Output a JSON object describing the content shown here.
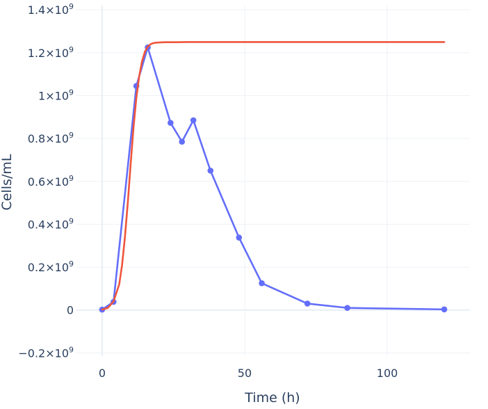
{
  "chart_data": {
    "type": "line",
    "xlabel": "Time (h)",
    "ylabel": "Cells/mL",
    "xlim": [
      -9,
      129
    ],
    "ylim": [
      -215000000,
      1420000000
    ],
    "x_ticks": [
      {
        "value": 0,
        "label": "0"
      },
      {
        "value": 50,
        "label": "50"
      },
      {
        "value": 100,
        "label": "100"
      }
    ],
    "y_ticks": [
      {
        "value": -200000000,
        "label": "−0.2×10",
        "exp": "9"
      },
      {
        "value": 0,
        "label": "0",
        "exp": ""
      },
      {
        "value": 200000000,
        "label": "0.2×10",
        "exp": "9"
      },
      {
        "value": 400000000,
        "label": "0.4×10",
        "exp": "9"
      },
      {
        "value": 600000000,
        "label": "0.6×10",
        "exp": "9"
      },
      {
        "value": 800000000,
        "label": "0.8×10",
        "exp": "9"
      },
      {
        "value": 1000000000,
        "label": "1×10",
        "exp": "9"
      },
      {
        "value": 1200000000,
        "label": "1.2×10",
        "exp": "9"
      },
      {
        "value": 1400000000,
        "label": "1.4×10",
        "exp": "9"
      }
    ],
    "grid": true,
    "series": [
      {
        "color": "#636efa",
        "mode": "lines+markers",
        "x": [
          0,
          4,
          12,
          16,
          24,
          28,
          32,
          38,
          48,
          56,
          72,
          86,
          120
        ],
        "y": [
          2000000,
          38000000,
          1045000000,
          1225000000,
          873000000,
          785000000,
          885000000,
          650000000,
          338000000,
          125000000,
          30000000,
          10000000,
          3000000
        ]
      },
      {
        "color": "#EF553B",
        "mode": "lines",
        "x": [
          0,
          2,
          4,
          6,
          7,
          8,
          9,
          10,
          11,
          12,
          13,
          14,
          15,
          16,
          17,
          18,
          19,
          20,
          22,
          25,
          30,
          40,
          60,
          80,
          100,
          120
        ],
        "y": [
          2000000,
          10000000,
          40000000,
          120000000,
          210000000,
          340000000,
          500000000,
          680000000,
          850000000,
          990000000,
          1090000000,
          1160000000,
          1205000000,
          1228000000,
          1240000000,
          1245000000,
          1247000000,
          1248000000,
          1249000000,
          1249000000,
          1250000000,
          1250000000,
          1250000000,
          1250000000,
          1250000000,
          1250000000
        ]
      }
    ]
  }
}
